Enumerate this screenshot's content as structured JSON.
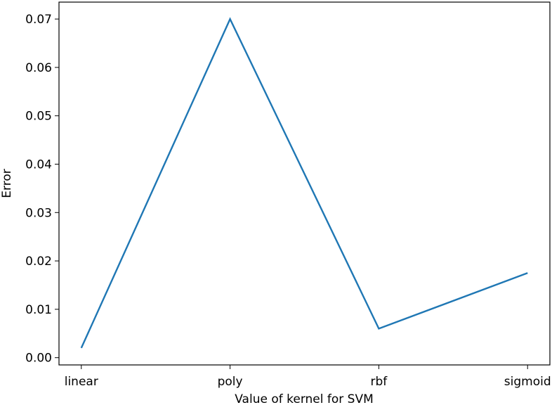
{
  "chart_data": {
    "type": "line",
    "categories": [
      "linear",
      "poly",
      "rbf",
      "sigmoid"
    ],
    "series": [
      {
        "values": [
          0.002,
          0.07,
          0.006,
          0.0175
        ],
        "color": "#1f77b4"
      }
    ],
    "xlabel": "Value of kernel for SVM",
    "ylabel": "Error",
    "ylim": [
      -0.0015,
      0.0735
    ],
    "yticks": [
      0.0,
      0.01,
      0.02,
      0.03,
      0.04,
      0.05,
      0.06,
      0.07
    ],
    "ytick_labels": [
      "0.00",
      "0.01",
      "0.02",
      "0.03",
      "0.04",
      "0.05",
      "0.06",
      "0.07"
    ],
    "grid": false,
    "legend": "none"
  }
}
